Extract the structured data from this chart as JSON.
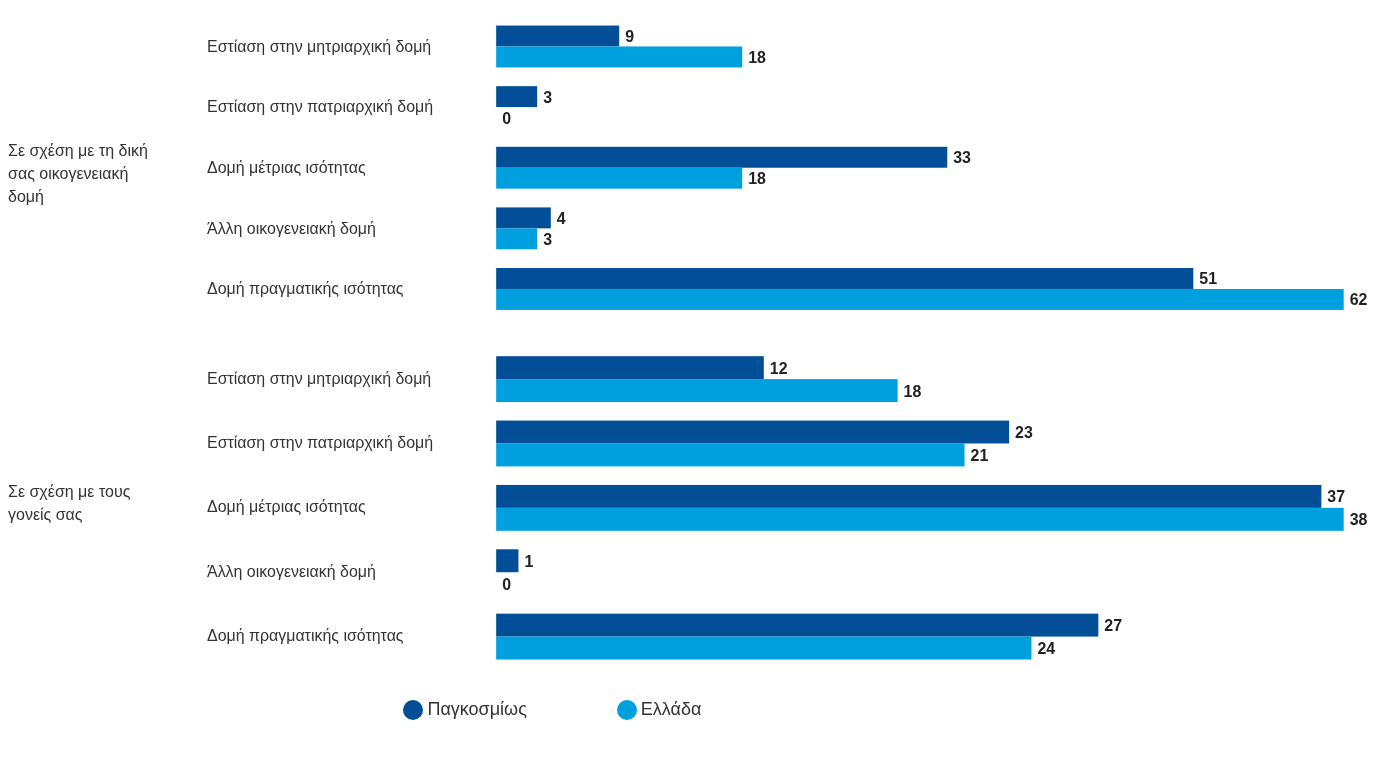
{
  "chart_data": [
    {
      "type": "bar",
      "orientation": "horizontal",
      "ylabel": "Σε σχέση με τη δική σας οικογενειακή δομή",
      "categories": [
        "Εστίαση στην μητριαρχική δομή",
        "Εστίαση στην πατριαρχική δομή",
        "Δομή μέτριας ισότητας",
        "Άλλη οικογενειακή δομή",
        "Δομή πραγματικής ισότητας"
      ],
      "data_labels": true,
      "series": [
        {
          "color": "#034f97",
          "values": [
            9,
            3,
            33,
            4,
            51
          ]
        },
        {
          "color": "#009fdd",
          "values": [
            18,
            0,
            18,
            3,
            62
          ]
        }
      ]
    },
    {
      "type": "bar",
      "orientation": "horizontal",
      "ylabel": "Σε σχέση με τους γονείς σας",
      "categories": [
        "Εστίαση στην μητριαρχική δομή",
        "Εστίαση στην πατριαρχική δομή",
        "Δομή μέτριας ισότητας",
        "Άλλη οικογενειακή δομή",
        "Δομή πραγματικής ισότητας"
      ],
      "data_labels": true,
      "legend": "bottom",
      "series": [
        {
          "name": "Παγκοσμίως",
          "color": "#034f97",
          "values": [
            12,
            23,
            37,
            1,
            27
          ]
        },
        {
          "name": "Ελλάδα",
          "color": "#009fdd",
          "values": [
            18,
            21,
            38,
            0,
            24
          ]
        }
      ]
    }
  ]
}
